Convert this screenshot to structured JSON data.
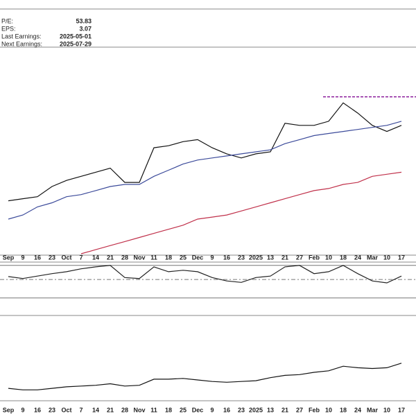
{
  "info": {
    "rows": [
      {
        "label": "P/E:",
        "value": "53.83"
      },
      {
        "label": "EPS:",
        "value": "3.07"
      },
      {
        "label": "Last Earnings:",
        "value": "2025-05-01"
      },
      {
        "label": "Next Earnings:",
        "value": "2025-07-29"
      }
    ]
  },
  "chart_data": [
    {
      "type": "line",
      "categories": [
        "Sep",
        "9",
        "16",
        "23",
        "Oct",
        "7",
        "14",
        "21",
        "28",
        "Nov",
        "11",
        "18",
        "25",
        "Dec",
        "9",
        "16",
        "23",
        "2025",
        "13",
        "21",
        "27",
        "Feb",
        "10",
        "18",
        "24",
        "Mar",
        "10",
        "17"
      ],
      "ylim": [
        0,
        100
      ],
      "series": [
        {
          "color": "#111111",
          "values": [
            26,
            27,
            28,
            33,
            36,
            38,
            40,
            42,
            35,
            35,
            52,
            53,
            55,
            56,
            52,
            49,
            47,
            49,
            50,
            64,
            63,
            63,
            65,
            74,
            69,
            63,
            60,
            63
          ]
        },
        {
          "color": "#3b4a9a",
          "values": [
            17,
            19,
            23,
            25,
            28,
            29,
            31,
            33,
            34,
            34,
            38,
            41,
            44,
            46,
            47,
            48,
            49,
            50,
            51,
            54,
            56,
            58,
            59,
            60,
            61,
            62,
            63,
            65
          ]
        },
        {
          "color": "#c0304a",
          "values": [
            null,
            null,
            null,
            null,
            null,
            0,
            2,
            4,
            6,
            8,
            10,
            12,
            14,
            17,
            18,
            19,
            21,
            23,
            25,
            27,
            29,
            31,
            32,
            34,
            35,
            38,
            39,
            40
          ]
        }
      ],
      "resistance": {
        "value": 77,
        "color": "#8a1a9a"
      }
    },
    {
      "type": "line",
      "ylim": [
        0,
        100
      ],
      "levels": [
        96,
        67,
        29
      ],
      "series": [
        {
          "color": "#222222",
          "values": [
            73,
            69,
            74,
            79,
            83,
            89,
            93,
            96,
            71,
            69,
            93,
            83,
            86,
            83,
            71,
            64,
            61,
            71,
            74,
            93,
            96,
            79,
            83,
            96,
            79,
            64,
            60,
            74
          ]
        }
      ]
    },
    {
      "type": "line",
      "categories": [
        "Sep",
        "9",
        "16",
        "23",
        "Oct",
        "7",
        "14",
        "21",
        "28",
        "Nov",
        "11",
        "18",
        "25",
        "Dec",
        "9",
        "16",
        "23",
        "2025",
        "13",
        "21",
        "27",
        "Feb",
        "10",
        "18",
        "24",
        "Mar",
        "10",
        "17"
      ],
      "ylim": [
        0,
        100
      ],
      "series": [
        {
          "color": "#111111",
          "values": [
            9,
            7,
            7,
            9,
            11,
            12,
            13,
            15,
            12,
            13,
            21,
            21,
            22,
            20,
            18,
            17,
            18,
            19,
            23,
            26,
            27,
            30,
            32,
            38,
            36,
            35,
            36,
            42
          ]
        }
      ]
    }
  ]
}
